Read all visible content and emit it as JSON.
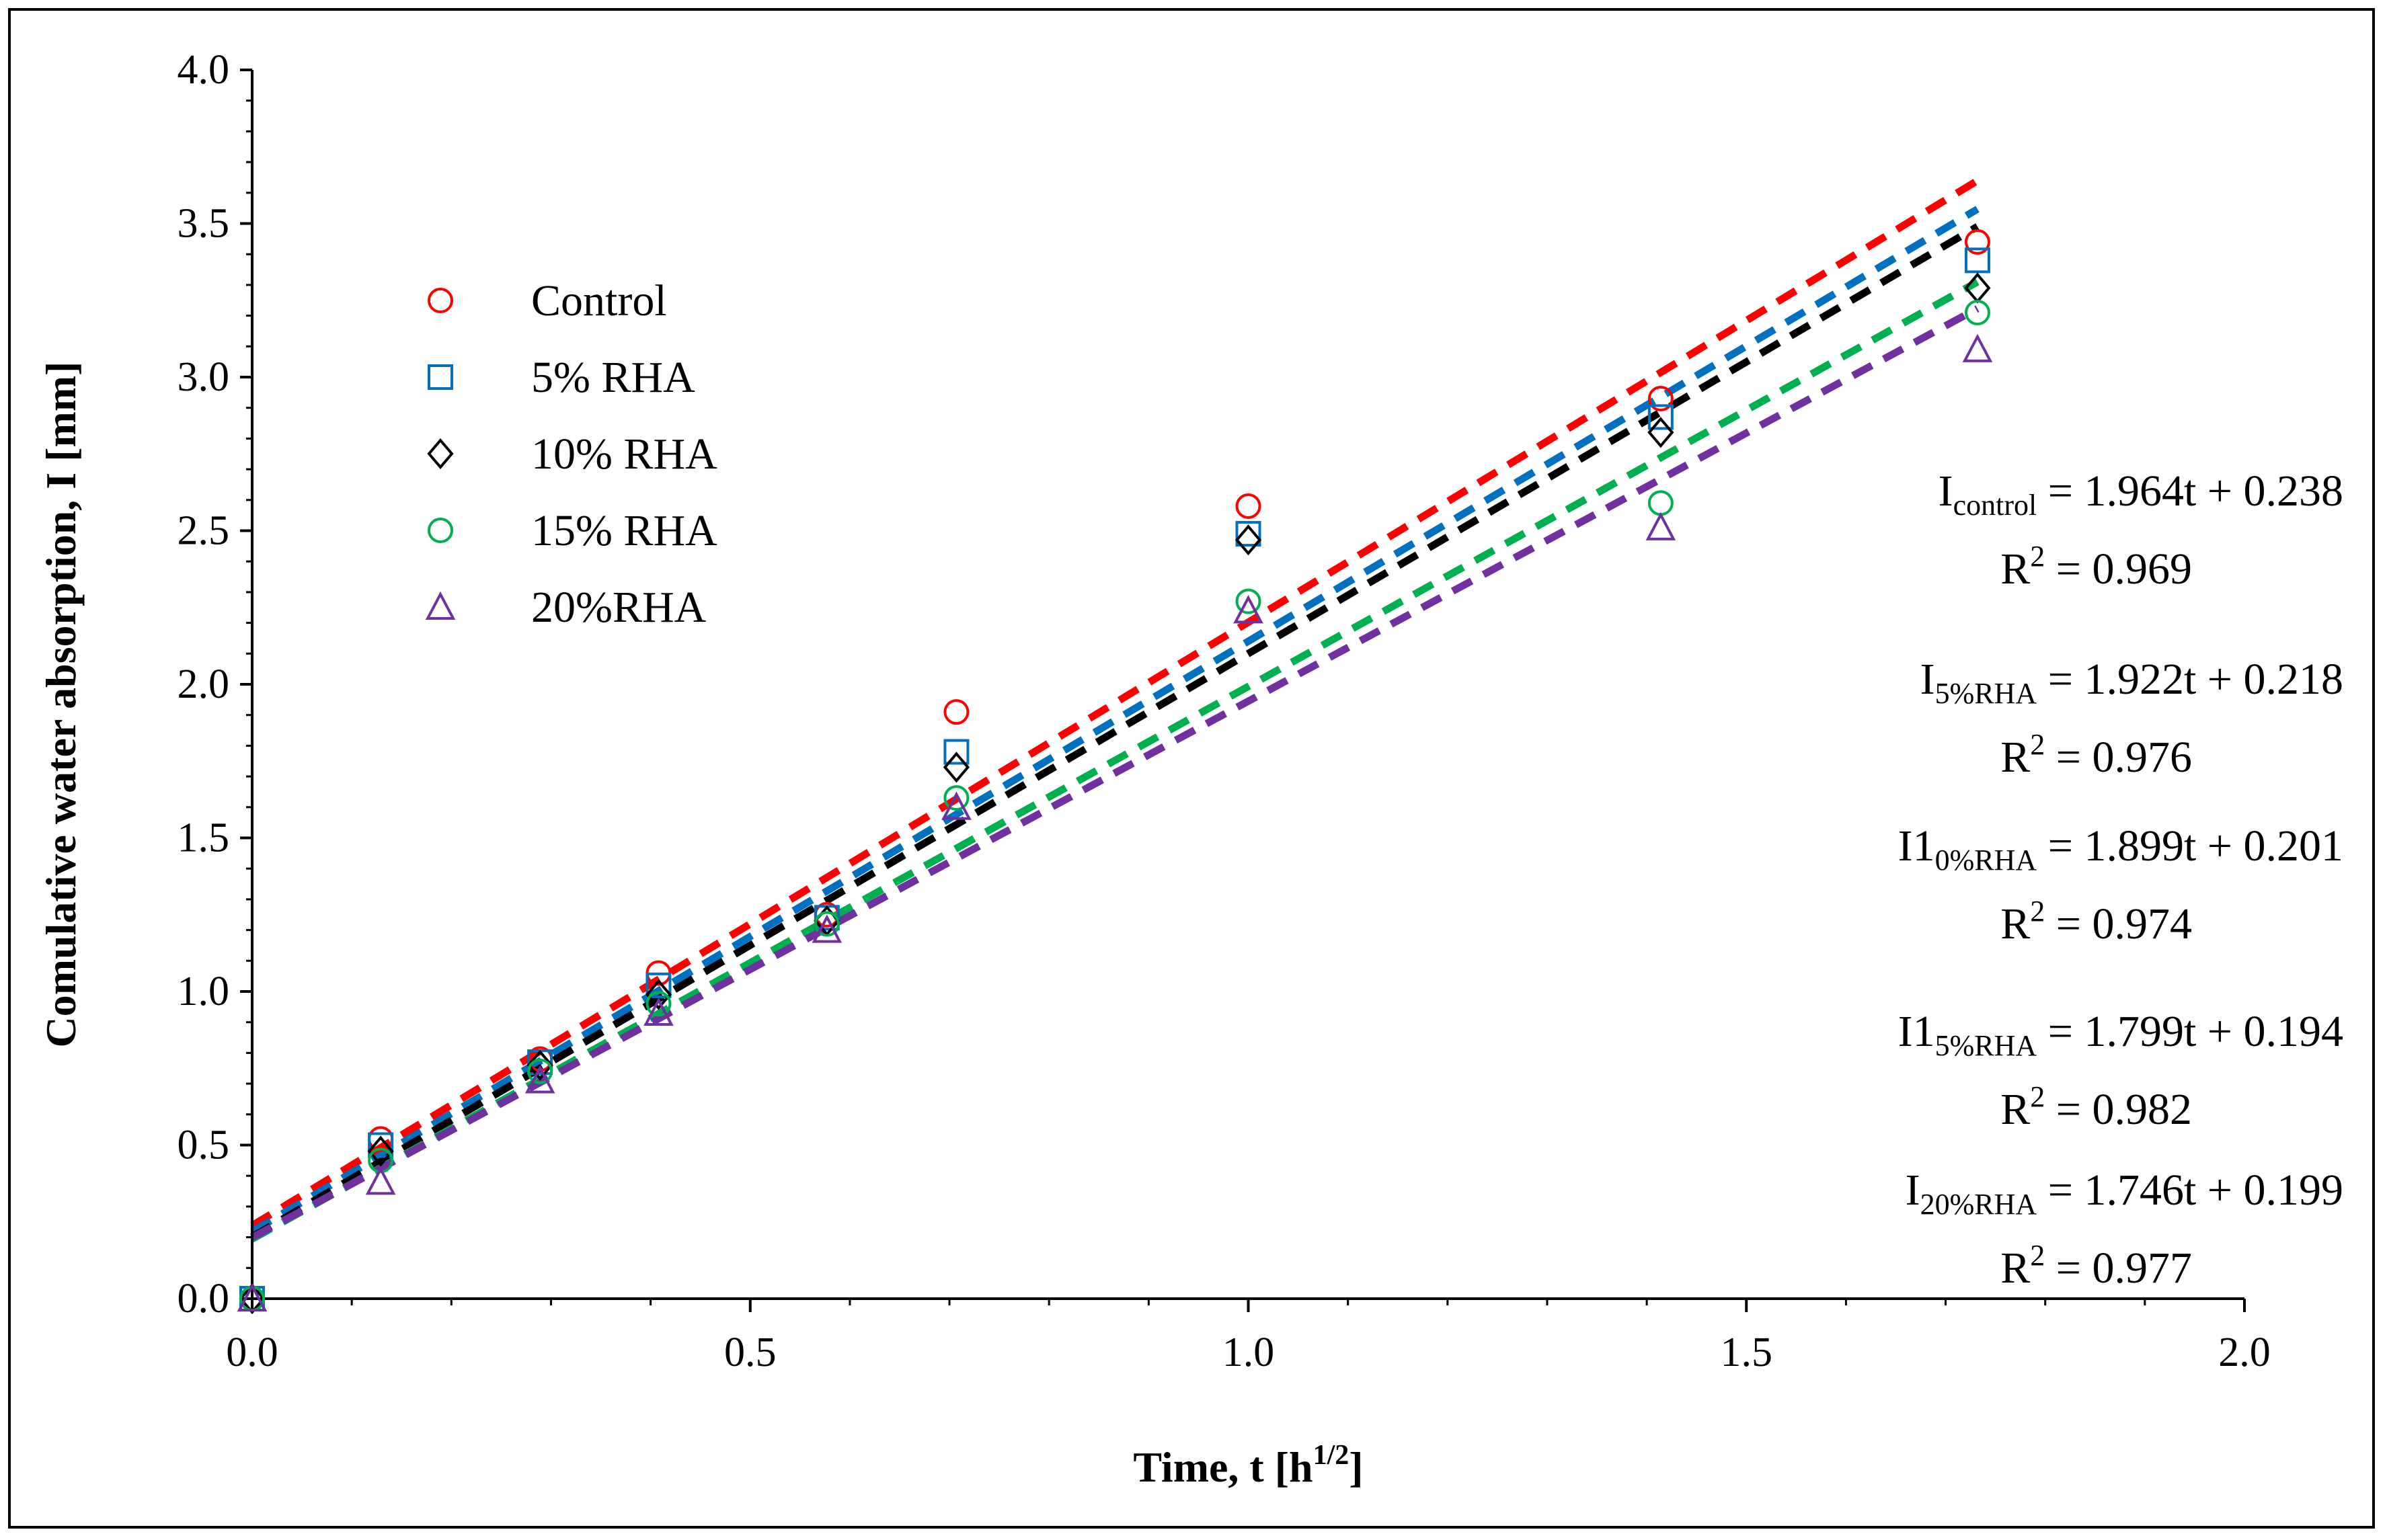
{
  "chart_data": {
    "type": "scatter",
    "title": "",
    "xlabel": "Time, t [h",
    "xlabel_sup": "1/2",
    "xlabel_end": "]",
    "ylabel": "Comulative water absorption, I [mm]",
    "xlim": [
      0.0,
      2.0
    ],
    "ylim": [
      0.0,
      4.0
    ],
    "xticks": [
      "0.0",
      "0.5",
      "1.0",
      "1.5",
      "2.0"
    ],
    "yticks": [
      "0.0",
      "0.5",
      "1.0",
      "1.5",
      "2.0",
      "2.5",
      "3.0",
      "3.5",
      "4.0"
    ],
    "x": [
      0.0,
      0.129,
      0.289,
      0.408,
      0.577,
      0.707,
      1.0,
      1.414,
      1.732
    ],
    "series": [
      {
        "name": "Control",
        "marker": "circle",
        "color": "#ff0000",
        "line_color": "#ff0000",
        "values": [
          0.0,
          0.52,
          0.78,
          1.06,
          1.25,
          1.91,
          2.58,
          2.93,
          3.44
        ],
        "fit": {
          "slope": 1.964,
          "intercept": 0.238,
          "x_range": [
            0.0,
            1.732
          ]
        },
        "equation_lhs": "I",
        "equation_sub": "control",
        "equation_rhs": " = 1.964t + 0.238",
        "r2_label": "R",
        "r2_sup": "2",
        "r2_value": " = 0.969"
      },
      {
        "name": "5% RHA",
        "marker": "square",
        "color": "#0070c0",
        "line_color": "#0070c0",
        "values": [
          0.0,
          0.5,
          0.77,
          1.02,
          1.24,
          1.78,
          2.49,
          2.87,
          3.38
        ],
        "fit": {
          "slope": 1.922,
          "intercept": 0.218,
          "x_range": [
            0.0,
            1.732
          ]
        },
        "equation_lhs": "I",
        "equation_sub": "5%RHA",
        "equation_rhs": " = 1.922t + 0.218",
        "r2_label": "R",
        "r2_sup": "2",
        "r2_value": " = 0.976"
      },
      {
        "name": "10% RHA",
        "marker": "diamond",
        "color": "#000000",
        "line_color": "#000000",
        "values": [
          0.0,
          0.48,
          0.76,
          0.99,
          1.23,
          1.73,
          2.47,
          2.82,
          3.29
        ],
        "fit": {
          "slope": 1.899,
          "intercept": 0.201,
          "x_range": [
            0.0,
            1.732
          ]
        },
        "equation_lhs": "I1",
        "equation_sub": "0%RHA",
        "equation_rhs": " = 1.899t + 0.201",
        "r2_label": "R",
        "r2_sup": "2",
        "r2_value": " = 0.974"
      },
      {
        "name": "15% RHA",
        "marker": "circle",
        "color": "#00b050",
        "line_color": "#00b050",
        "values": [
          0.0,
          0.45,
          0.74,
          0.96,
          1.22,
          1.63,
          2.27,
          2.59,
          3.21
        ],
        "fit": {
          "slope": 1.799,
          "intercept": 0.194,
          "x_range": [
            0.0,
            1.732
          ]
        },
        "equation_lhs": "I1",
        "equation_sub": "5%RHA",
        "equation_rhs": " = 1.799t + 0.194",
        "r2_label": "R",
        "r2_sup": "2",
        "r2_value": " = 0.982"
      },
      {
        "name": "20%RHA",
        "marker": "triangle",
        "color": "#7030a0",
        "line_color": "#7030a0",
        "values": [
          0.0,
          0.38,
          0.71,
          0.93,
          1.2,
          1.6,
          2.24,
          2.51,
          3.09
        ],
        "fit": {
          "slope": 1.746,
          "intercept": 0.199,
          "x_range": [
            0.0,
            1.732
          ]
        },
        "equation_lhs": "I",
        "equation_sub": "20%RHA",
        "equation_rhs": " = 1.746t + 0.199",
        "r2_label": "R",
        "r2_sup": "2",
        "r2_value": " = 0.977"
      }
    ],
    "legend_position": "top-left",
    "grid": false
  }
}
